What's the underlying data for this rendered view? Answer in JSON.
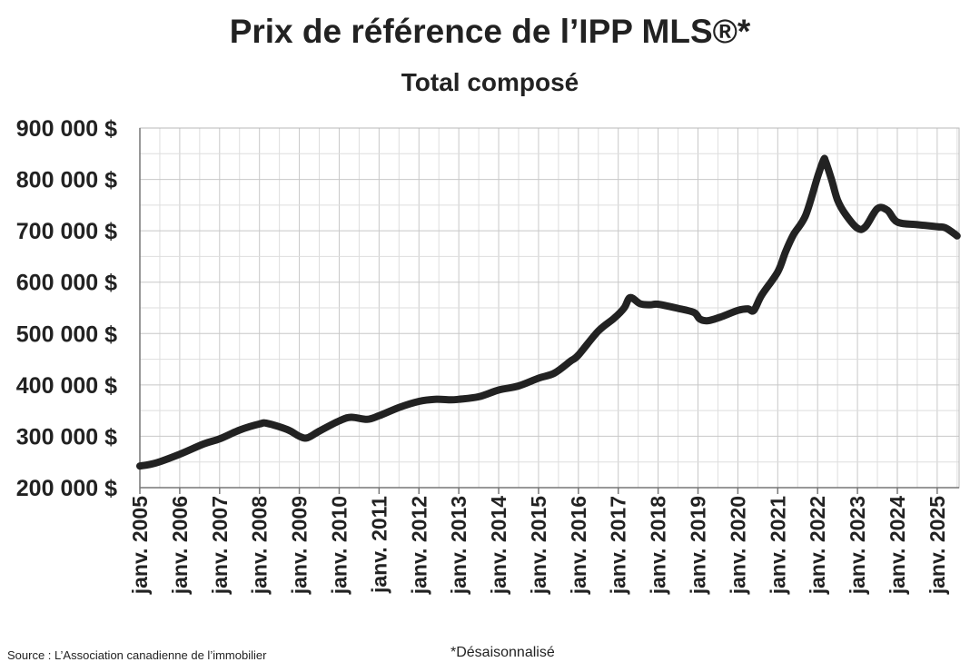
{
  "chart_data": {
    "type": "line",
    "title": "Prix de référence de l’IPP MLS®*",
    "subtitle": "Total composé",
    "xlabel": "",
    "ylabel": "",
    "ylim": [
      200000,
      900000
    ],
    "y_ticks": [
      "900 000 $",
      "800 000 $",
      "700 000 $",
      "600 000 $",
      "500 000 $",
      "400 000 $",
      "300 000 $",
      "200 000 $"
    ],
    "y_tick_values": [
      900000,
      800000,
      700000,
      600000,
      500000,
      400000,
      300000,
      200000
    ],
    "x_ticks": [
      "janv. 2005",
      "janv. 2006",
      "janv. 2007",
      "janv. 2008",
      "janv. 2009",
      "janv. 2010",
      "janv. 2011",
      "janv. 2012",
      "janv. 2013",
      "janv. 2014",
      "janv. 2015",
      "janv. 2016",
      "janv. 2017",
      "janv. 2018",
      "janv. 2019",
      "janv. 2020",
      "janv. 2021",
      "janv. 2022",
      "janv. 2023",
      "janv. 2024",
      "janv. 2025"
    ],
    "x_tick_values": [
      2005,
      2006,
      2007,
      2008,
      2009,
      2010,
      2011,
      2012,
      2013,
      2014,
      2015,
      2016,
      2017,
      2018,
      2019,
      2020,
      2021,
      2022,
      2023,
      2024,
      2025
    ],
    "xlim": [
      2005,
      2025.55
    ],
    "grid": true,
    "legend": "none",
    "series": [
      {
        "color": "#222222",
        "x": [
          2005.0,
          2005.4,
          2006.0,
          2006.6,
          2007.0,
          2007.5,
          2008.0,
          2008.2,
          2008.7,
          2009.0,
          2009.2,
          2009.5,
          2010.0,
          2010.3,
          2010.7,
          2011.0,
          2011.5,
          2012.0,
          2012.4,
          2012.8,
          2013.0,
          2013.5,
          2014.0,
          2014.5,
          2015.0,
          2015.4,
          2015.8,
          2016.0,
          2016.5,
          2016.9,
          2017.15,
          2017.3,
          2017.55,
          2017.8,
          2018.0,
          2018.5,
          2018.9,
          2019.05,
          2019.25,
          2019.6,
          2020.0,
          2020.25,
          2020.4,
          2020.6,
          2021.0,
          2021.2,
          2021.4,
          2021.7,
          2022.0,
          2022.15,
          2022.2,
          2022.35,
          2022.5,
          2022.7,
          2023.0,
          2023.2,
          2023.5,
          2023.75,
          2024.0,
          2024.5,
          2025.0,
          2025.2,
          2025.4,
          2025.5
        ],
        "values": [
          242000,
          248000,
          265000,
          285000,
          295000,
          312000,
          324000,
          325000,
          313000,
          300000,
          297000,
          310000,
          330000,
          337000,
          333000,
          340000,
          356000,
          368000,
          372000,
          371000,
          372000,
          377000,
          390000,
          398000,
          413000,
          423000,
          446000,
          458000,
          505000,
          530000,
          550000,
          570000,
          558000,
          556000,
          557000,
          549000,
          541000,
          528000,
          525000,
          533000,
          545000,
          548000,
          545000,
          575000,
          620000,
          660000,
          693000,
          730000,
          805000,
          838000,
          835000,
          800000,
          760000,
          732000,
          705000,
          708000,
          743000,
          740000,
          717000,
          712000,
          708000,
          706000,
          696000,
          690000
        ]
      }
    ]
  },
  "source_note": "Source : L’Association canadienne de l’immobilier",
  "footnote": "*Désaisonnalisé"
}
